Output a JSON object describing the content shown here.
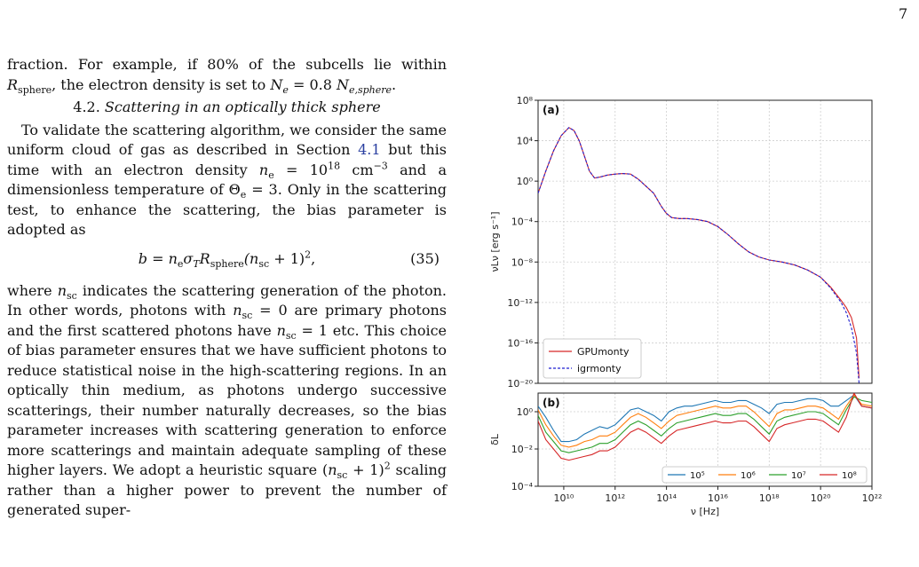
{
  "page_number": "7",
  "text": {
    "p1_line1": "fraction. For example, if 80% of the subcells lie within",
    "p1_r": "R",
    "p1_sphere": "sphere",
    "p1_mid": ", the electron density is set to ",
    "p1_ne": "N",
    "p1_e": "e",
    "p1_eq": " = 0.8 ",
    "p1_ne2": "N",
    "p1_esphere": "e,sphere",
    "p1_end": ".",
    "section_number": "4.2.",
    "section_title": "Scattering in an optically thick sphere",
    "p2_a": "To validate the scattering algorithm, we consider the same uniform cloud of gas as described in Section ",
    "p2_link": "4.1",
    "p2_b": " but this time with an electron density ",
    "p2_ne": "n",
    "p2_e": "e",
    "p2_c": " = 10",
    "p2_exp18": "18",
    "p2_unit": " cm",
    "p2_exp_m3": "−3",
    "p2_d": " and a dimensionless temperature of Θ",
    "p2_e2": "e",
    "p2_f": " = 3. Only in the scattering test, to enhance the scattering, the bias parameter is adopted as",
    "eq_lhs": "b = n",
    "eq_e": "e",
    "eq_sigma": "σ",
    "eq_T": "T",
    "eq_R": "R",
    "eq_sphere": "sphere",
    "eq_paren": "(n",
    "eq_sc": "sc",
    "eq_rest": " + 1)",
    "eq_sq": "2",
    "eq_comma": ",",
    "eq_number": "(35)",
    "p3_a": "where ",
    "p3_n": "n",
    "p3_sc": "sc",
    "p3_b": " indicates the scattering generation of the photon. In other words, photons with ",
    "p3_n2": "n",
    "p3_sc2": "sc",
    "p3_c": " = 0 are primary photons and the first scattered photons have ",
    "p3_n3": "n",
    "p3_sc3": "sc",
    "p3_d": " = 1 etc. This choice of bias parameter ensures that we have sufficient photons to reduce statistical noise in the high-scattering regions. In an optically thin medium, as photons undergo successive scatterings, their number naturally decreases, so the bias parameter increases with scattering generation to enforce more scatterings and maintain adequate sampling of these higher layers. We adopt a heuristic square (",
    "p3_n4": "n",
    "p3_sc4": "sc",
    "p3_e": " + 1)",
    "p3_sq": "2",
    "p3_f": " scaling rather than a higher power to prevent the number of generated super-"
  },
  "chart_data": [
    {
      "type": "line",
      "panel_label": "(a)",
      "xlabel": "",
      "ylabel": "νLν [erg s⁻¹]",
      "xscale": "log",
      "yscale": "log",
      "xlim": [
        1000000000.0,
        1e+22
      ],
      "ylim": [
        1e-20,
        100000000.0
      ],
      "yticks": [
        "10⁸",
        "10⁴",
        "10⁰",
        "10⁻⁴",
        "10⁻⁸",
        "10⁻¹²",
        "10⁻¹⁶",
        "10⁻²⁰"
      ],
      "ytick_exponents": [
        8,
        4,
        0,
        -4,
        -8,
        -12,
        -16,
        -20
      ],
      "grid": true,
      "legend_position": "lower-left",
      "series": [
        {
          "name": "GPUmonty",
          "color": "#d62728",
          "style": "solid",
          "x_log10": [
            9.0,
            9.3,
            9.6,
            9.9,
            10.2,
            10.4,
            10.6,
            10.8,
            11.0,
            11.2,
            11.4,
            11.7,
            12.0,
            12.3,
            12.6,
            12.9,
            13.2,
            13.5,
            13.8,
            14.0,
            14.2,
            14.5,
            14.8,
            15.2,
            15.6,
            16.0,
            16.4,
            16.8,
            17.2,
            17.6,
            18.0,
            18.5,
            19.0,
            19.5,
            20.0,
            20.4,
            20.8,
            21.0,
            21.2,
            21.4,
            21.5
          ],
          "y_log10": [
            -1.2,
            1.0,
            3.0,
            4.5,
            5.3,
            5.0,
            4.0,
            2.5,
            1.0,
            0.3,
            0.4,
            0.6,
            0.7,
            0.75,
            0.7,
            0.2,
            -0.5,
            -1.2,
            -2.5,
            -3.2,
            -3.6,
            -3.7,
            -3.7,
            -3.8,
            -4.0,
            -4.5,
            -5.3,
            -6.2,
            -7.0,
            -7.5,
            -7.8,
            -8.0,
            -8.3,
            -8.8,
            -9.5,
            -10.5,
            -11.8,
            -12.5,
            -13.5,
            -15.5,
            -19.5
          ]
        },
        {
          "name": "igrmonty",
          "color": "#1f1fd0",
          "style": "dashed",
          "x_log10": [
            9.0,
            9.3,
            9.6,
            9.9,
            10.2,
            10.4,
            10.6,
            10.8,
            11.0,
            11.2,
            11.4,
            11.7,
            12.0,
            12.3,
            12.6,
            12.9,
            13.2,
            13.5,
            13.8,
            14.0,
            14.2,
            14.5,
            14.8,
            15.2,
            15.6,
            16.0,
            16.4,
            16.8,
            17.2,
            17.6,
            18.0,
            18.5,
            19.0,
            19.5,
            20.0,
            20.4,
            20.8,
            21.0,
            21.2,
            21.4,
            21.5
          ],
          "y_log10": [
            -1.2,
            1.0,
            3.0,
            4.5,
            5.3,
            5.0,
            4.0,
            2.5,
            1.0,
            0.3,
            0.4,
            0.6,
            0.7,
            0.75,
            0.7,
            0.2,
            -0.5,
            -1.2,
            -2.5,
            -3.2,
            -3.6,
            -3.7,
            -3.7,
            -3.8,
            -4.0,
            -4.5,
            -5.3,
            -6.2,
            -7.0,
            -7.5,
            -7.8,
            -8.0,
            -8.3,
            -8.8,
            -9.5,
            -10.6,
            -12.0,
            -13.0,
            -14.5,
            -17.0,
            -20.0
          ]
        }
      ]
    },
    {
      "type": "line",
      "panel_label": "(b)",
      "xlabel": "ν [Hz]",
      "ylabel": "δL",
      "xscale": "log",
      "yscale": "log",
      "xlim": [
        1000000000.0,
        1e+22
      ],
      "ylim": [
        0.0001,
        10
      ],
      "yticks": [
        "10⁰",
        "10⁻²",
        "10⁻⁴"
      ],
      "ytick_exponents": [
        0,
        -2,
        -4
      ],
      "xticks": [
        "10¹⁰",
        "10¹²",
        "10¹⁴",
        "10¹⁶",
        "10¹⁸",
        "10²⁰",
        "10²²"
      ],
      "xtick_exponents": [
        10,
        12,
        14,
        16,
        18,
        20,
        22
      ],
      "grid": true,
      "legend_position": "lower-right",
      "x_log10": [
        9.0,
        9.3,
        9.6,
        9.9,
        10.2,
        10.5,
        10.8,
        11.1,
        11.4,
        11.7,
        12.0,
        12.3,
        12.6,
        12.9,
        13.2,
        13.5,
        13.8,
        14.1,
        14.4,
        14.7,
        15.0,
        15.3,
        15.6,
        15.9,
        16.2,
        16.5,
        16.8,
        17.1,
        17.4,
        17.7,
        18.0,
        18.3,
        18.6,
        18.9,
        19.2,
        19.5,
        19.8,
        20.1,
        20.4,
        20.7,
        21.0,
        21.3,
        21.6,
        22.0
      ],
      "series": [
        {
          "name": "10⁵",
          "color": "#1f77b4",
          "y_log10": [
            0.3,
            -0.3,
            -1.0,
            -1.6,
            -1.6,
            -1.5,
            -1.2,
            -1.0,
            -0.8,
            -0.9,
            -0.7,
            -0.3,
            0.1,
            0.2,
            0.0,
            -0.2,
            -0.5,
            0.0,
            0.2,
            0.3,
            0.3,
            0.4,
            0.5,
            0.6,
            0.5,
            0.5,
            0.6,
            0.6,
            0.4,
            0.2,
            -0.1,
            0.4,
            0.5,
            0.5,
            0.6,
            0.7,
            0.7,
            0.6,
            0.3,
            0.3,
            0.6,
            0.9,
            0.3,
            0.2
          ]
        },
        {
          "name": "10⁶",
          "color": "#ff7f0e",
          "y_log10": [
            0.1,
            -0.7,
            -1.3,
            -1.8,
            -1.9,
            -1.8,
            -1.6,
            -1.5,
            -1.3,
            -1.3,
            -1.1,
            -0.7,
            -0.3,
            -0.1,
            -0.3,
            -0.6,
            -0.9,
            -0.5,
            -0.2,
            -0.1,
            0.0,
            0.1,
            0.2,
            0.3,
            0.2,
            0.2,
            0.3,
            0.3,
            0.0,
            -0.4,
            -0.8,
            -0.1,
            0.1,
            0.1,
            0.2,
            0.3,
            0.3,
            0.2,
            -0.1,
            -0.4,
            0.3,
            0.9,
            0.4,
            0.3
          ]
        },
        {
          "name": "10⁷",
          "color": "#2ca02c",
          "y_log10": [
            -0.2,
            -1.1,
            -1.6,
            -2.1,
            -2.2,
            -2.1,
            -2.0,
            -1.9,
            -1.7,
            -1.7,
            -1.5,
            -1.1,
            -0.7,
            -0.5,
            -0.7,
            -1.0,
            -1.3,
            -0.9,
            -0.6,
            -0.5,
            -0.4,
            -0.3,
            -0.2,
            -0.1,
            -0.2,
            -0.2,
            -0.1,
            -0.1,
            -0.4,
            -0.8,
            -1.2,
            -0.5,
            -0.3,
            -0.2,
            -0.1,
            0.0,
            0.0,
            -0.1,
            -0.4,
            -0.7,
            0.1,
            0.8,
            0.6,
            0.5
          ]
        },
        {
          "name": "10⁸",
          "color": "#d62728",
          "y_log10": [
            -0.5,
            -1.5,
            -2.0,
            -2.5,
            -2.6,
            -2.5,
            -2.4,
            -2.3,
            -2.1,
            -2.1,
            -1.9,
            -1.5,
            -1.1,
            -0.9,
            -1.1,
            -1.4,
            -1.7,
            -1.3,
            -1.0,
            -0.9,
            -0.8,
            -0.7,
            -0.6,
            -0.5,
            -0.6,
            -0.6,
            -0.5,
            -0.5,
            -0.8,
            -1.2,
            -1.6,
            -0.9,
            -0.7,
            -0.6,
            -0.5,
            -0.4,
            -0.4,
            -0.5,
            -0.8,
            -1.1,
            -0.3,
            1.0,
            0.3,
            0.2
          ]
        }
      ]
    }
  ]
}
